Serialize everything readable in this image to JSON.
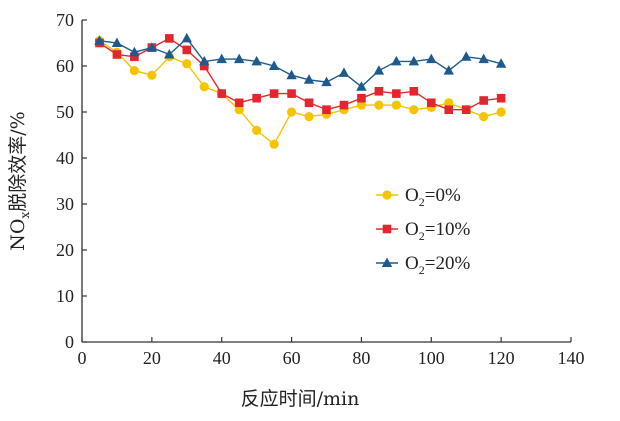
{
  "chart_data": {
    "type": "line",
    "xlabel": "反应时间/min",
    "ylabel_main": "NO",
    "ylabel_sub": "x",
    "ylabel_rest": "脱除效率/%",
    "xlim": [
      0,
      140
    ],
    "ylim": [
      0,
      70
    ],
    "xticks": [
      0,
      20,
      40,
      60,
      80,
      100,
      120,
      140
    ],
    "yticks": [
      0,
      10,
      20,
      30,
      40,
      50,
      60,
      70
    ],
    "grid": false,
    "legend_position": "right-middle",
    "x": [
      5,
      10,
      15,
      20,
      25,
      30,
      35,
      40,
      45,
      50,
      55,
      60,
      65,
      70,
      75,
      80,
      85,
      90,
      95,
      100,
      105,
      110,
      115,
      120
    ],
    "series": [
      {
        "name": "O2=0%",
        "label_main": "O",
        "label_sub": "2",
        "label_rest": "=0%",
        "color": "#f5c400",
        "marker": "circle",
        "values": [
          65.5,
          63,
          59,
          58,
          62,
          60.5,
          55.5,
          54,
          50.5,
          46,
          43,
          50,
          49,
          49.5,
          50.5,
          51.5,
          51.5,
          51.5,
          50.5,
          51,
          52,
          50.5,
          49,
          50
        ]
      },
      {
        "name": "O2=10%",
        "label_main": "O",
        "label_sub": "2",
        "label_rest": "=10%",
        "color": "#e3262e",
        "marker": "square",
        "values": [
          65,
          62.5,
          62,
          64,
          66,
          63.5,
          60,
          54,
          52,
          53,
          54,
          54,
          52,
          50.5,
          51.5,
          53,
          54.5,
          54,
          54.5,
          52,
          50.5,
          50.5,
          52.5,
          53
        ]
      },
      {
        "name": "O2=20%",
        "label_main": "O",
        "label_sub": "2",
        "label_rest": "=20%",
        "color": "#1e5a8c",
        "marker": "triangle",
        "values": [
          65.5,
          65,
          63,
          64,
          62.5,
          66,
          61,
          61.5,
          61.5,
          61,
          60,
          58,
          57,
          56.5,
          58.5,
          55.5,
          59,
          61,
          61,
          61.5,
          59,
          62,
          61.5,
          60.5
        ]
      }
    ]
  }
}
